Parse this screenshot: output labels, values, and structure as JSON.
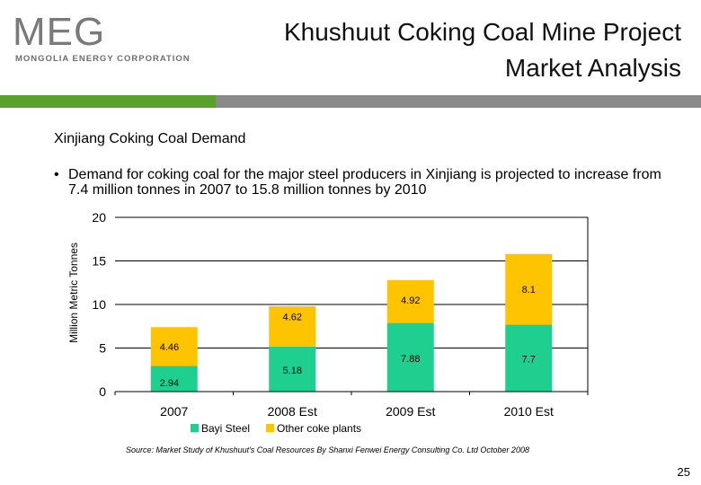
{
  "header": {
    "logo_mark": "MEG",
    "logo_sub": "MONGOLIA ENERGY CORPORATION",
    "title_line1": "Khushuut Coking Coal Mine Project",
    "title_line2": "Market Analysis"
  },
  "content": {
    "subtitle": "Xinjiang Coking Coal Demand",
    "bullet_mark": "•",
    "bullet_text": "Demand for coking coal for the major steel producers in Xinjiang is projected to increase from 7.4 million tonnes in 2007 to 15.8 million tonnes by 2010"
  },
  "chart_data": {
    "type": "bar",
    "stacked": true,
    "categories": [
      "2007",
      "2008 Est",
      "2009 Est",
      "2010 Est"
    ],
    "series": [
      {
        "name": "Bayi Steel",
        "values": [
          2.94,
          5.18,
          7.88,
          7.7
        ],
        "labels": [
          "2.94",
          "5.18",
          "7.88",
          "7.7"
        ],
        "color": "#1fcf8f"
      },
      {
        "name": "Other coke plants",
        "values": [
          4.46,
          4.62,
          4.92,
          8.1
        ],
        "labels": [
          "4.46",
          "4.62",
          "4.92",
          "8.1"
        ],
        "color": "#ffc400"
      }
    ],
    "ylabel": "Million Metric Tonnes",
    "ylim": [
      0,
      20
    ],
    "yticks": [
      "0",
      "5",
      "10",
      "15",
      "20"
    ],
    "grid": true,
    "legend": "bottom"
  },
  "footer": {
    "source": "Source: Market Study of Khushuut's Coal Resources By Shanxi Fenwei Energy Consulting Co. Ltd October 2008",
    "page_number": "25"
  }
}
